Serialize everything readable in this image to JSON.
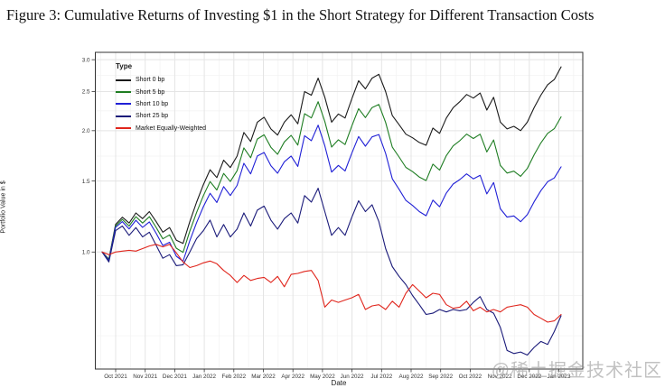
{
  "figure_caption": "Figure 3: Cumulative Returns of Investing $1 in the Short Strategy for Different Transaction Costs",
  "watermark_text": "@稀土掘金技术社区",
  "chart_data": {
    "type": "line",
    "title": "",
    "xlabel": "Date",
    "ylabel": "Portfolio Value in $",
    "y_scale": "log",
    "ylim": [
      0.51,
      3.13
    ],
    "grid": "on",
    "legend_title": "Type",
    "legend_position": "top-left-inside",
    "x_tick_labels": [
      "Oct 2021",
      "Nov 2021",
      "Dec 2021",
      "Jan 2022",
      "Feb 2022",
      "Mar 2022",
      "Apr 2022",
      "May 2022",
      "Jun 2022",
      "Jul 2022",
      "Aug 2022",
      "Sep 2022",
      "Oct 2022",
      "Nov 2022",
      "Dec 2022",
      "Jan 2023"
    ],
    "y_tick_labels": [
      "1.0",
      "1.5",
      "2.0",
      "2.5",
      "3.0"
    ],
    "y_tick_values": [
      1.0,
      1.5,
      2.0,
      2.5,
      3.0
    ],
    "y_minor_values": [
      0.62,
      0.78,
      1.22,
      1.73,
      2.24,
      2.74
    ],
    "sampling_note": "values sampled weekly from mid-Sep 2021 to early Jan 2023",
    "series": [
      {
        "name": "Short 0 bp",
        "color": "#1a1a1a",
        "values": [
          1.0,
          0.96,
          1.17,
          1.22,
          1.18,
          1.25,
          1.21,
          1.26,
          1.19,
          1.12,
          1.15,
          1.07,
          1.05,
          1.19,
          1.33,
          1.47,
          1.6,
          1.53,
          1.69,
          1.62,
          1.73,
          1.98,
          1.88,
          2.1,
          2.16,
          2.02,
          1.95,
          2.1,
          2.19,
          2.08,
          2.5,
          2.45,
          2.7,
          2.42,
          2.1,
          2.2,
          2.15,
          2.4,
          2.66,
          2.54,
          2.7,
          2.76,
          2.5,
          2.18,
          2.07,
          1.96,
          1.92,
          1.87,
          1.84,
          2.03,
          1.97,
          2.15,
          2.28,
          2.36,
          2.46,
          2.41,
          2.48,
          2.25,
          2.42,
          2.1,
          2.02,
          2.05,
          2.0,
          2.1,
          2.28,
          2.45,
          2.6,
          2.68,
          2.88
        ]
      },
      {
        "name": "Short 5 bp",
        "color": "#1e7d22",
        "values": [
          1.0,
          0.956,
          1.16,
          1.205,
          1.16,
          1.224,
          1.18,
          1.224,
          1.151,
          1.078,
          1.103,
          1.022,
          0.998,
          1.127,
          1.254,
          1.38,
          1.496,
          1.425,
          1.567,
          1.496,
          1.591,
          1.813,
          1.714,
          1.907,
          1.953,
          1.819,
          1.748,
          1.875,
          1.947,
          1.842,
          2.204,
          2.151,
          2.36,
          2.107,
          1.821,
          1.899,
          1.848,
          2.055,
          2.268,
          2.156,
          2.282,
          2.323,
          2.096,
          1.82,
          1.721,
          1.622,
          1.583,
          1.535,
          1.504,
          1.652,
          1.597,
          1.735,
          1.833,
          1.889,
          1.961,
          1.913,
          1.96,
          1.771,
          1.897,
          1.639,
          1.57,
          1.587,
          1.541,
          1.612,
          1.742,
          1.865,
          1.97,
          2.023,
          2.164
        ]
      },
      {
        "name": "Short 10 bp",
        "color": "#2020d6",
        "values": [
          1.0,
          0.952,
          1.151,
          1.19,
          1.141,
          1.199,
          1.151,
          1.188,
          1.113,
          1.038,
          1.057,
          0.976,
          0.949,
          1.067,
          1.183,
          1.296,
          1.399,
          1.327,
          1.453,
          1.381,
          1.463,
          1.66,
          1.563,
          1.731,
          1.766,
          1.638,
          1.568,
          1.674,
          1.731,
          1.631,
          1.943,
          1.889,
          2.064,
          1.834,
          1.579,
          1.64,
          1.589,
          1.759,
          1.934,
          1.831,
          1.93,
          1.956,
          1.757,
          1.519,
          1.431,
          1.343,
          1.305,
          1.26,
          1.23,
          1.345,
          1.295,
          1.401,
          1.474,
          1.513,
          1.563,
          1.519,
          1.55,
          1.394,
          1.487,
          1.28,
          1.221,
          1.229,
          1.189,
          1.238,
          1.332,
          1.42,
          1.494,
          1.527,
          1.627
        ]
      },
      {
        "name": "Short 25 bp",
        "color": "#1b1b7a",
        "values": [
          1.0,
          0.945,
          1.13,
          1.16,
          1.1,
          1.15,
          1.09,
          1.12,
          1.04,
          0.965,
          0.985,
          0.925,
          0.93,
          1.0,
          1.08,
          1.13,
          1.2,
          1.09,
          1.17,
          1.09,
          1.14,
          1.25,
          1.16,
          1.27,
          1.3,
          1.2,
          1.14,
          1.21,
          1.25,
          1.18,
          1.38,
          1.33,
          1.44,
          1.26,
          1.1,
          1.15,
          1.1,
          1.22,
          1.34,
          1.26,
          1.31,
          1.19,
          1.02,
          0.92,
          0.87,
          0.83,
          0.78,
          0.74,
          0.7,
          0.705,
          0.72,
          0.71,
          0.72,
          0.715,
          0.72,
          0.75,
          0.775,
          0.72,
          0.705,
          0.65,
          0.57,
          0.56,
          0.565,
          0.555,
          0.58,
          0.6,
          0.59,
          0.635,
          0.695
        ]
      },
      {
        "name": "Market Equally-Weighted",
        "color": "#e0251c",
        "values": [
          1.0,
          0.985,
          1.0,
          1.005,
          1.01,
          1.005,
          1.02,
          1.035,
          1.045,
          1.03,
          1.045,
          0.995,
          0.945,
          0.915,
          0.925,
          0.94,
          0.95,
          0.935,
          0.9,
          0.875,
          0.84,
          0.875,
          0.85,
          0.86,
          0.865,
          0.84,
          0.87,
          0.82,
          0.88,
          0.885,
          0.895,
          0.9,
          0.85,
          0.73,
          0.76,
          0.75,
          0.76,
          0.77,
          0.785,
          0.72,
          0.735,
          0.74,
          0.72,
          0.755,
          0.73,
          0.79,
          0.83,
          0.8,
          0.77,
          0.79,
          0.785,
          0.74,
          0.725,
          0.73,
          0.755,
          0.715,
          0.73,
          0.71,
          0.72,
          0.71,
          0.73,
          0.735,
          0.74,
          0.73,
          0.7,
          0.685,
          0.67,
          0.675,
          0.7
        ]
      }
    ]
  }
}
